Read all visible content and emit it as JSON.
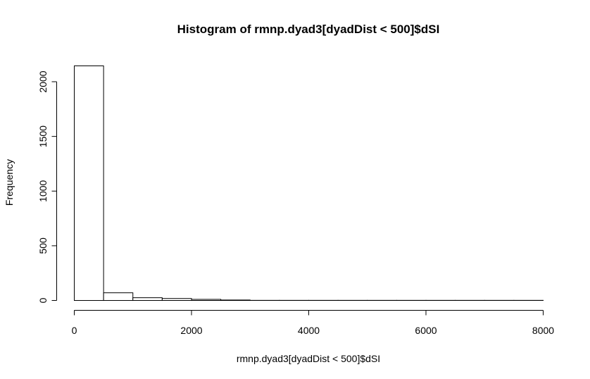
{
  "chart_data": {
    "type": "bar",
    "title": "Histogram of rmnp.dyad3[dyadDist < 500]$dSI",
    "xlabel": "rmnp.dyad3[dyadDist < 500]$dSI",
    "ylabel": "Frequency",
    "bin_edges": [
      0,
      500,
      1000,
      1500,
      2000,
      2500,
      3000,
      3500,
      4000,
      4500,
      5000,
      5500,
      6000,
      6500,
      7000,
      7500,
      8000
    ],
    "values": [
      2145,
      70,
      25,
      18,
      10,
      4,
      1,
      1,
      1,
      1,
      1,
      1,
      1,
      1,
      1,
      1
    ],
    "xlim": [
      0,
      8000
    ],
    "ylim": [
      0,
      2145
    ],
    "x_ticks": [
      0,
      2000,
      4000,
      6000,
      8000
    ],
    "x_tick_labels": [
      "0",
      "2000",
      "4000",
      "6000",
      "8000"
    ],
    "y_ticks": [
      0,
      500,
      1000,
      1500,
      2000
    ],
    "y_tick_labels": [
      "0",
      "500",
      "1000",
      "1500",
      "2000"
    ],
    "grid": false,
    "legend": "none",
    "bar_fill": "#ffffff",
    "bar_stroke": "#000000"
  }
}
